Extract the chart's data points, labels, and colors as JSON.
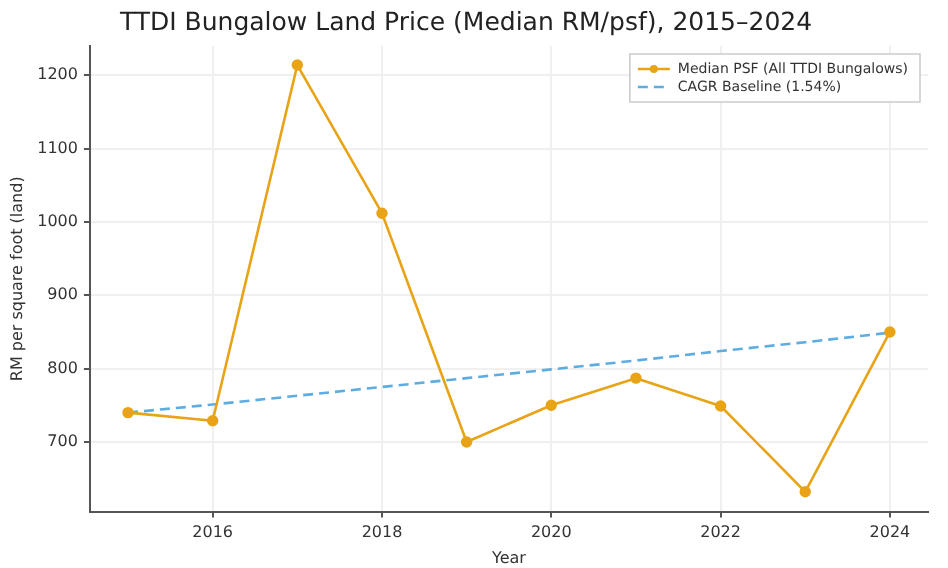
{
  "chart_data": {
    "type": "line",
    "title": "TTDI Bungalow Land Price (Median RM/psf), 2015–2024",
    "xlabel": "Year",
    "ylabel": "RM per square foot (land)",
    "x": [
      2015,
      2016,
      2017,
      2018,
      2019,
      2020,
      2021,
      2022,
      2023,
      2024
    ],
    "series": [
      {
        "name": "Median PSF (All TTDI Bungalows)",
        "color": "#e8a317",
        "marker": "circle",
        "line_style": "solid",
        "values": [
          740,
          729,
          1214,
          1012,
          700,
          750,
          787,
          749,
          632,
          850
        ]
      },
      {
        "name": "CAGR Baseline (1.54%)",
        "color": "#5dade2",
        "marker": "none",
        "line_style": "dashed",
        "values": [
          740,
          751,
          763,
          775,
          787,
          799,
          811,
          824,
          836,
          849
        ]
      }
    ],
    "xlim": [
      2014.55,
      2024.45
    ],
    "xticks": [
      2016,
      2018,
      2020,
      2022,
      2024
    ],
    "ylim": [
      605,
      1240
    ],
    "yticks": [
      700,
      800,
      900,
      1000,
      1100,
      1200
    ],
    "grid": true,
    "legend": "top right"
  }
}
